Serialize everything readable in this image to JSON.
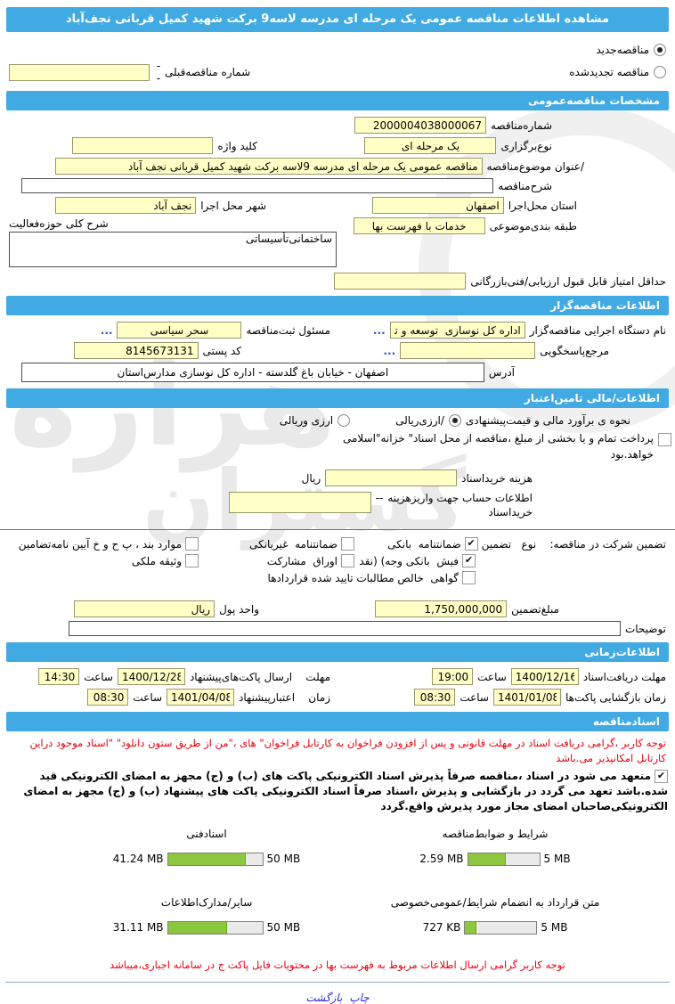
{
  "watermark": {
    "word1": "هزاره",
    "word2": "گستران"
  },
  "titlebar": "مشاهده اطلاعات مناقصه عمومی یک مرحله ای مدرسه لاسه9 برکت شهید کمیل قربانی نجف‌آباد",
  "colors": {
    "header_blue": "#41aae2",
    "input_yellow": "#ffffc6",
    "progress_green": "#8dc63f",
    "notice_red": "#e8000d",
    "link_blue": "#2b2bd5"
  },
  "top": {
    "new_option": {
      "label": "مناقصه‌جدید",
      "selected": true
    },
    "renew_option": {
      "label": "مناقصه تجدیدشده",
      "selected": false
    },
    "prev_number": {
      "label": "شماره مناقصه‌قبلی",
      "dash": "--",
      "value": ""
    }
  },
  "general": {
    "heading": "مشخصات مناقصه‌عمومی",
    "number": {
      "label": "شماره‌مناقصه",
      "value": "2000004038000067"
    },
    "method": {
      "label": "نوع‌برگزاری",
      "value": "یک مرحله ای"
    },
    "keyword": {
      "label": "کلید واژه",
      "value": ""
    },
    "subject": {
      "label": "/عنوان موضوع‌مناقصه",
      "value": "مناقصه عمومی یک مرحله ای مدرسه 9لاسه برکت شهید کمیل قربانی نجف آباد"
    },
    "description": {
      "label": "شرح‌مناقصه",
      "value": ""
    },
    "province": {
      "label": "استان محل‌اجرا",
      "value": "اصفهان"
    },
    "city": {
      "label": "شهر محل اجرا",
      "value": "نجف آباد"
    },
    "category": {
      "label": "طبقه بندی‌موضوعی",
      "value": "خدمات با فهرست بها"
    },
    "activity": {
      "label": "شرح کلی حوزه‌فعالیت",
      "value": "ساختمانی‌تأسیساتی"
    },
    "min_score": {
      "label": "حداقل امتیاز قابل قبول ارزیابی/فنی‌بازرگانی",
      "value": ""
    }
  },
  "employer": {
    "heading": "اطلاعات مناقصه‌گزار",
    "agency": {
      "label": "نام دستگاه اجرایی مناقصه‌گزار",
      "value": "اداره کل نوسازی  توسعه و تجهیز مدارس استان اصفهان"
    },
    "registrar": {
      "label": "مسئول ثبت‌مناقصه",
      "value": "سحر سیاسی"
    },
    "respond": {
      "label": "مرجع‌پاسخگویی",
      "value": ""
    },
    "postal": {
      "label": "کد پستی",
      "value": "8145673131"
    },
    "address": {
      "label": "آدرس",
      "value": "اصفهان - خیابان باغ گلدسته - اداره کل نوسازی مدارس‌استان"
    },
    "more": "..."
  },
  "financial": {
    "heading": "اطلاعات/مالی تامین‌اعتبار",
    "estimate_label": "نحوه ی برآورد مالی و قیمت‌پیشنهادی",
    "rial_option": {
      "label": "/ارزی‌ریالی",
      "selected": true
    },
    "currency_option": {
      "label": "ارزی وریالی",
      "selected": false
    },
    "treasury": {
      "checked": false,
      "label": "پرداخت تمام و یا بخشی از مبلغ ،مناقصه از محل اسناد\" خزانه\"اسلامی خواهد.بود"
    },
    "doc_fee": {
      "label": "هزینه خریداسناد",
      "unit": "ریال",
      "value": ""
    },
    "account": {
      "label": "اطلاعات حساب جهت واریزهزینه",
      "label2": "خریداسناد",
      "dash": "--",
      "value": ""
    },
    "guarantee": {
      "title": "تضمین شرکت در مناقصه:    نوع   تضمین",
      "options": [
        {
          "label": "ضمانتنامه  بانکی",
          "checked": true
        },
        {
          "label": "ضمانتنامه  غیربانکی",
          "checked": false
        },
        {
          "label": "موارد بند ، پ ح و خ آیین نامه‌تضامین",
          "checked": false
        },
        {
          "label": "فیش  بانکی وجه) (نقد",
          "checked": true
        },
        {
          "label": "اوراق  مشارکت",
          "checked": false
        },
        {
          "label": "وثیقه ملکی",
          "checked": false
        },
        {
          "label": "گواهی  خالص مطالبات تایید شده قراردادها",
          "checked": false
        }
      ]
    },
    "amount": {
      "label": "مبلغ‌تضمین",
      "value": "1,750,000,000"
    },
    "unit": {
      "label": "واحد پول",
      "value": "ریال"
    },
    "notes": {
      "label": "توضیحات",
      "value": ""
    }
  },
  "schedule": {
    "heading": "اطلاعات‌زمانی",
    "hour_label": "ساعت",
    "receive": {
      "label": "مهلت دریافت‌اسناد",
      "date": "1400/12/16",
      "time": "19:00"
    },
    "submit": {
      "label": "مهلت    ارسال پاکت‌های‌پیشنهاد",
      "date": "1400/12/28",
      "time": "14:30"
    },
    "opening": {
      "label": "زمان بازگشایی پاکت‌ها",
      "date": "1401/01/08",
      "time": "08:30"
    },
    "validity": {
      "label": "زمان    اعتبارپیشنهاد",
      "date": "1401/04/08",
      "time": "08:30"
    }
  },
  "documents": {
    "heading": "اسنادمناقصه",
    "notice": "توجه کاربر ،گرامی دریافت اسناد در مهلت قانونی و پس از افزودن فراخوان به کارتابل فراخوان\" های ،\"من از طریق ستون دانلود\" \"اسناد موجود دراین کارتابل امکانپذیر می.باشد",
    "commitment": {
      "checked": true,
      "text": "منعهد می شود در اسناد ،مناقصه صرفاً پذیرش اسناد الکترونیکی پاکت های (ب) و (ج) مجهز به امضای الکترونیکی قید شده.باشد تعهد می گردد در بازگشایی و پذیرش ،اسناد صرفاً اسناد الکترونیکی پاکت های پیشنهاد (ب) و (ج) مجهز به امضای الکترونیکی‌صاحبان امضای مجاز مورد پذیرش واقع.گردد"
    },
    "uploads": [
      {
        "label": "شرایط و ضوابط‌مناقصه",
        "size": "2.59 MB",
        "max": "5 MB",
        "pct": 52
      },
      {
        "label": "اسنادفنی",
        "size": "41.24 MB",
        "max": "50 MB",
        "pct": 82
      },
      {
        "label": "متن قرارداد به انضمام شرایط/عمومی‌خصوصی",
        "size": "727 KB",
        "max": "5 MB",
        "pct": 14
      },
      {
        "label": "سایر/مدارک‌اطلاعات",
        "size": "31.11 MB",
        "max": "50 MB",
        "pct": 62
      }
    ],
    "bottom_notice": "توجه کاربر گرامی ارسال اطلاعات مربوط به فهرست بها در محتویات فایل پاکت ج در سامانه اجباری،میباشد"
  },
  "footer": {
    "print": "چاپ",
    "back": "بازگشت"
  }
}
